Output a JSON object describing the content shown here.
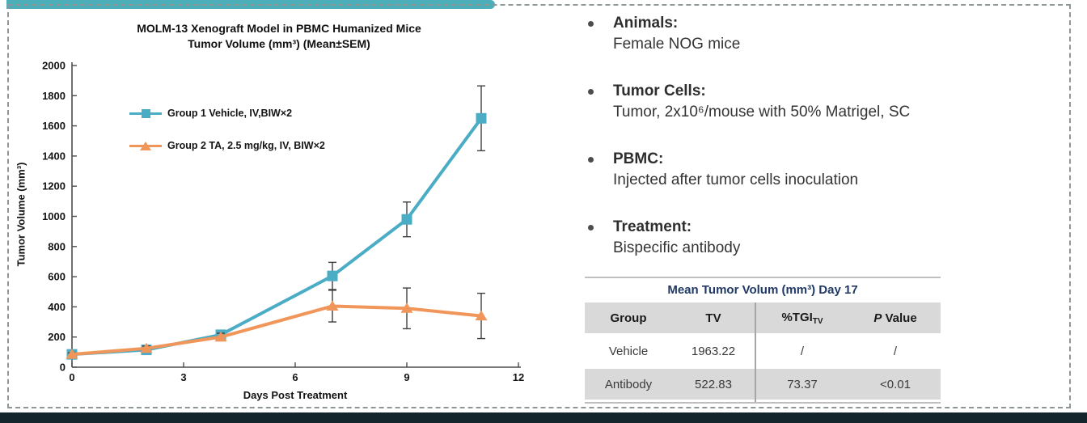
{
  "chart": {
    "title_line1": "MOLM-13 Xenograft Model in PBMC Humanized Mice",
    "title_line2": "Tumor Volume (mm³) (Mean±SEM)"
  },
  "chart_data": {
    "type": "line",
    "title": "MOLM-13 Xenograft Model in PBMC Humanized Mice Tumor Volume (mm³) (Mean±SEM)",
    "xlabel": "Days Post Treatment",
    "ylabel": "Tumor Volume (mm³)",
    "xlim": [
      0,
      12
    ],
    "ylim": [
      0,
      2000
    ],
    "x_ticks": [
      0,
      3,
      6,
      9,
      12
    ],
    "y_ticks": [
      0,
      200,
      400,
      600,
      800,
      1000,
      1200,
      1400,
      1600,
      1800,
      2000
    ],
    "grid": false,
    "legend_position": "inside upper-left",
    "x": [
      0,
      2,
      4,
      7,
      9,
      11
    ],
    "series": [
      {
        "name": "Group 1 Vehicle, IV,BIW×2",
        "color": "#4BACC6",
        "marker": "square",
        "values": [
          85,
          115,
          215,
          605,
          980,
          1650
        ],
        "sem": [
          12,
          18,
          25,
          90,
          115,
          215
        ]
      },
      {
        "name": "Group 2 TA, 2.5 mg/kg, IV, BIW×2",
        "color": "#F0965A",
        "marker": "triangle",
        "values": [
          85,
          125,
          200,
          405,
          390,
          340
        ],
        "sem": [
          10,
          15,
          25,
          105,
          135,
          150
        ]
      }
    ]
  },
  "bullets": [
    {
      "heading": "Animals:",
      "body": "Female NOG mice"
    },
    {
      "heading": "Tumor Cells:",
      "body": "Tumor, 2x10⁶/mouse with 50% Matrigel, SC"
    },
    {
      "heading": "PBMC:",
      "body": "Injected after tumor cells inoculation"
    },
    {
      "heading": "Treatment:",
      "body": "Bispecific antibody"
    }
  ],
  "table": {
    "title": "Mean Tumor Volum (mm³) Day 17",
    "columns": {
      "group": "Group",
      "tv": "TV",
      "tgi_base": "%TGI",
      "tgi_sub": "TV",
      "p_em": "P",
      "p_rest": " Value"
    },
    "rows": [
      {
        "group": "Vehicle",
        "tv": "1963.22",
        "tgi": "/",
        "p": "/"
      },
      {
        "group": "Antibody",
        "tv": "522.83",
        "tgi": "73.37",
        "p": "<0.01"
      }
    ]
  },
  "colors": {
    "accent_teal_bar": "#4BAEB8",
    "bottom_bar": "#14262B",
    "dash_border": "#8F9698",
    "series_vehicle": "#4BACC6",
    "series_antibody": "#F0965A",
    "table_band_gray": "#D9D9D9",
    "table_title_navy": "#1F3864",
    "error_bar": "#404040"
  }
}
